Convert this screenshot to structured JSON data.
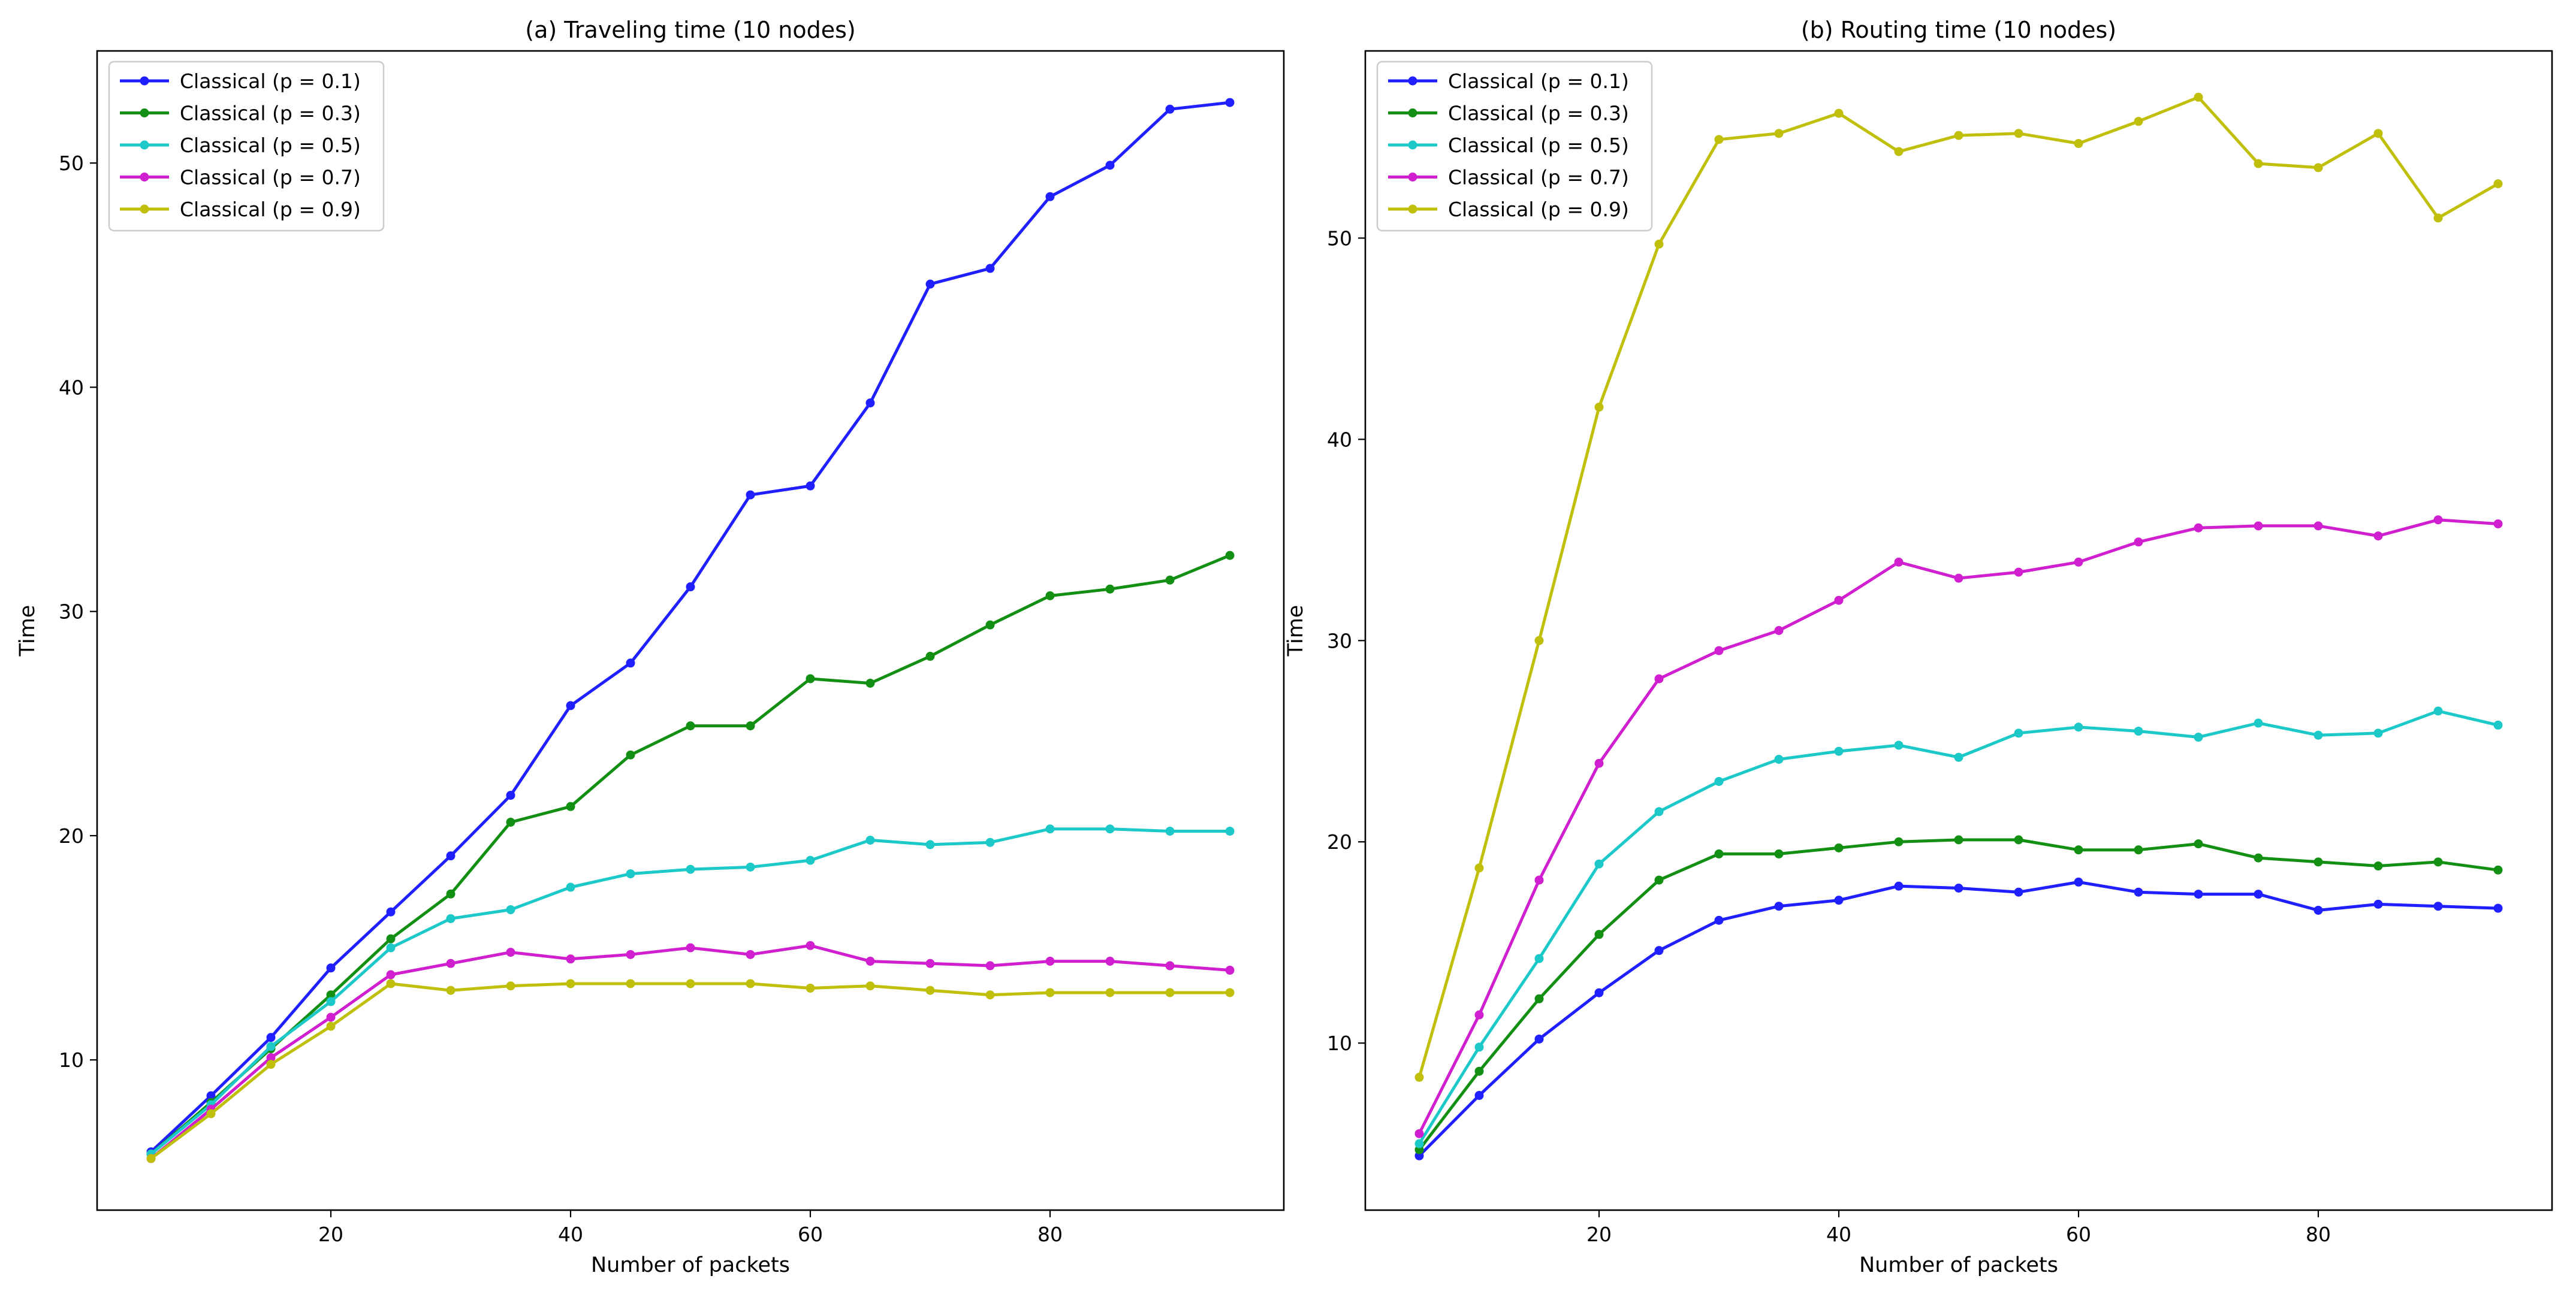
{
  "chart_data": [
    {
      "type": "line",
      "title": "(a) Traveling time (10 nodes)",
      "xlabel": "Number of packets",
      "ylabel": "Time",
      "xlim": [
        0.5,
        99.5
      ],
      "ylim": [
        3.3,
        55.0
      ],
      "xticks": [
        20,
        40,
        60,
        80
      ],
      "yticks": [
        10,
        20,
        30,
        40,
        50
      ],
      "legend_position": "top-left",
      "x": [
        5,
        10,
        15,
        20,
        25,
        30,
        35,
        40,
        45,
        50,
        55,
        60,
        65,
        70,
        75,
        80,
        85,
        90,
        95
      ],
      "series": [
        {
          "name": "Classical (p = 0.1)",
          "color": "#1f1fff",
          "values": [
            5.9,
            8.4,
            11.0,
            14.1,
            16.6,
            19.1,
            21.8,
            25.8,
            27.7,
            31.1,
            35.2,
            35.6,
            39.3,
            44.6,
            45.3,
            48.5,
            49.9,
            52.4,
            52.7
          ]
        },
        {
          "name": "Classical (p = 0.3)",
          "color": "#138f13",
          "values": [
            5.8,
            8.1,
            10.5,
            12.9,
            15.4,
            17.4,
            20.6,
            21.3,
            23.6,
            24.9,
            24.9,
            27.0,
            26.8,
            28.0,
            29.4,
            30.7,
            31.0,
            31.4,
            32.5
          ]
        },
        {
          "name": "Classical (p = 0.5)",
          "color": "#1cc8c8",
          "values": [
            5.8,
            8.0,
            10.6,
            12.6,
            15.0,
            16.3,
            16.7,
            17.7,
            18.3,
            18.5,
            18.6,
            18.9,
            19.8,
            19.6,
            19.7,
            20.3,
            20.3,
            20.2,
            20.2
          ]
        },
        {
          "name": "Classical (p = 0.7)",
          "color": "#cf1fcf",
          "values": [
            5.6,
            7.8,
            10.1,
            11.9,
            13.8,
            14.3,
            14.8,
            14.5,
            14.7,
            15.0,
            14.7,
            15.1,
            14.4,
            14.3,
            14.2,
            14.4,
            14.4,
            14.2,
            14.0
          ]
        },
        {
          "name": "Classical (p = 0.9)",
          "color": "#bfbf0c",
          "values": [
            5.6,
            7.6,
            9.8,
            11.5,
            13.4,
            13.1,
            13.3,
            13.4,
            13.4,
            13.4,
            13.4,
            13.2,
            13.3,
            13.1,
            12.9,
            13.0,
            13.0,
            13.0,
            13.0
          ]
        }
      ]
    },
    {
      "type": "line",
      "title": "(b) Routing time (10 nodes)",
      "xlabel": "Number of packets",
      "ylabel": "Time",
      "xlim": [
        0.5,
        99.5
      ],
      "ylim": [
        1.7,
        59.3
      ],
      "xticks": [
        20,
        40,
        60,
        80
      ],
      "yticks": [
        10,
        20,
        30,
        40,
        50
      ],
      "legend_position": "top-left",
      "x": [
        5,
        10,
        15,
        20,
        25,
        30,
        35,
        40,
        45,
        50,
        55,
        60,
        65,
        70,
        75,
        80,
        85,
        90,
        95
      ],
      "series": [
        {
          "name": "Classical (p = 0.1)",
          "color": "#1f1fff",
          "values": [
            4.4,
            7.4,
            10.2,
            12.5,
            14.6,
            16.1,
            16.8,
            17.1,
            17.8,
            17.7,
            17.5,
            18.0,
            17.5,
            17.4,
            17.4,
            16.6,
            16.9,
            16.8,
            16.7
          ]
        },
        {
          "name": "Classical (p = 0.3)",
          "color": "#138f13",
          "values": [
            4.7,
            8.6,
            12.2,
            15.4,
            18.1,
            19.4,
            19.4,
            19.7,
            20.0,
            20.1,
            20.1,
            19.6,
            19.6,
            19.9,
            19.2,
            19.0,
            18.8,
            19.0,
            18.6
          ]
        },
        {
          "name": "Classical (p = 0.5)",
          "color": "#1cc8c8",
          "values": [
            5.0,
            9.8,
            14.2,
            18.9,
            21.5,
            23.0,
            24.1,
            24.5,
            24.8,
            24.2,
            25.4,
            25.7,
            25.5,
            25.2,
            25.9,
            25.3,
            25.4,
            26.5,
            25.8
          ]
        },
        {
          "name": "Classical (p = 0.7)",
          "color": "#cf1fcf",
          "values": [
            5.5,
            11.4,
            18.1,
            23.9,
            28.1,
            29.5,
            30.5,
            32.0,
            33.9,
            33.1,
            33.4,
            33.9,
            34.9,
            35.6,
            35.7,
            35.7,
            35.2,
            36.0,
            35.8
          ]
        },
        {
          "name": "Classical (p = 0.9)",
          "color": "#bfbf0c",
          "values": [
            8.3,
            18.7,
            30.0,
            41.6,
            49.7,
            54.9,
            55.2,
            56.2,
            54.3,
            55.1,
            55.2,
            54.7,
            55.8,
            57.0,
            53.7,
            53.5,
            55.2,
            51.0,
            52.7
          ]
        }
      ]
    }
  ]
}
